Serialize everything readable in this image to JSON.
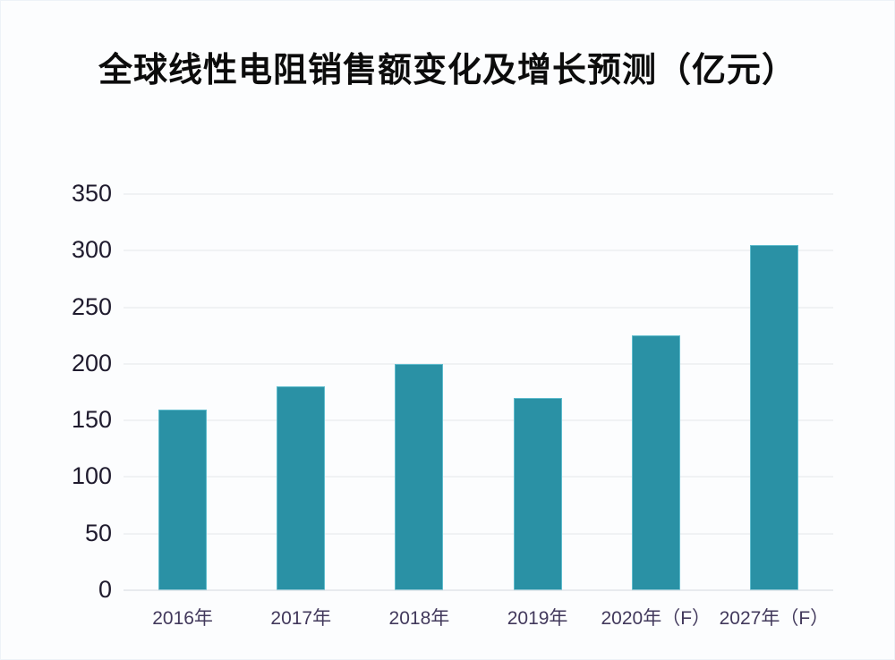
{
  "page": {
    "background": "#fcfdfe"
  },
  "chart_data": {
    "type": "bar",
    "title": "全球线性电阻销售额变化及增长预测（亿元）",
    "categories": [
      "2016年",
      "2017年",
      "2018年",
      "2019年",
      "2020年（F）",
      "2027年（F）"
    ],
    "values": [
      160,
      180,
      200,
      170,
      225,
      305
    ],
    "xlabel": "",
    "ylabel": "",
    "ylim": [
      0,
      350
    ],
    "yticks": [
      0,
      50,
      100,
      150,
      200,
      250,
      300,
      350
    ],
    "grid": true,
    "legend": false,
    "colors": {
      "bar_fill": "#2a91a5",
      "bar_edge": "#5fbccd",
      "gridline": "#e4e7eb",
      "axis_baseline": "#d5d9de",
      "y_tick_label": "#1f1b2e",
      "x_tick_label": "#42395c",
      "title": "#0c0c0c"
    }
  }
}
